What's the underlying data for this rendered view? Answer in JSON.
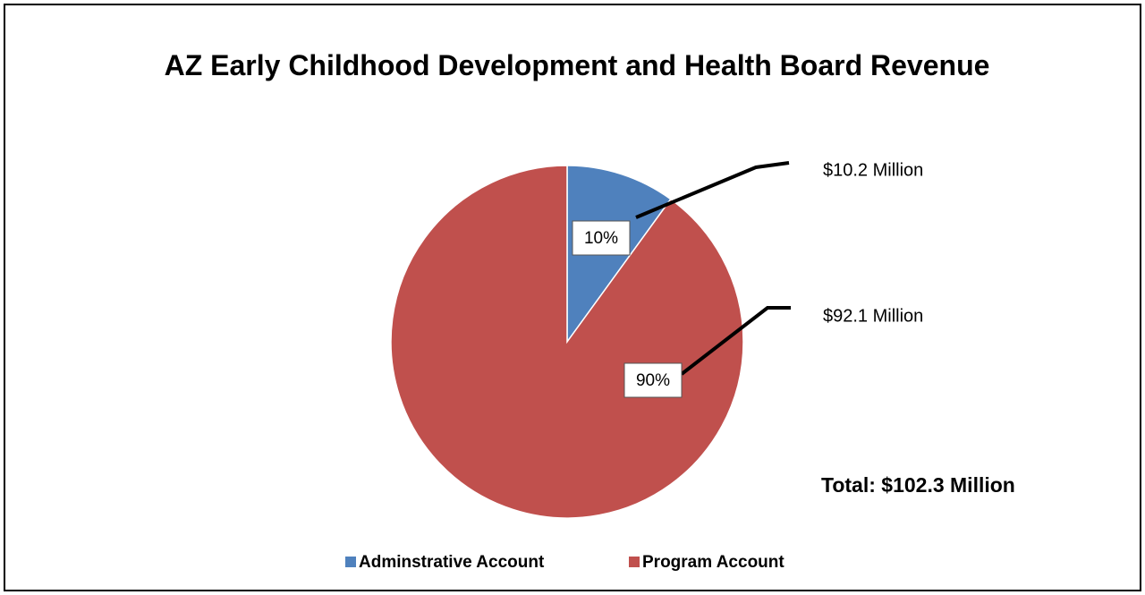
{
  "chart_data": {
    "type": "pie",
    "title": "AZ Early Childhood Development and Health Board Revenue",
    "categories": [
      "Adminstrative Account",
      "Program Account"
    ],
    "values": [
      10,
      90
    ],
    "value_labels": [
      "10%",
      "90%"
    ],
    "colors": [
      "#4f81bd",
      "#c0504d"
    ],
    "annotations": [
      "$10.2 Million",
      "$92.1 Million",
      "Total: $102.3 Million"
    ],
    "legend": "bottom"
  }
}
